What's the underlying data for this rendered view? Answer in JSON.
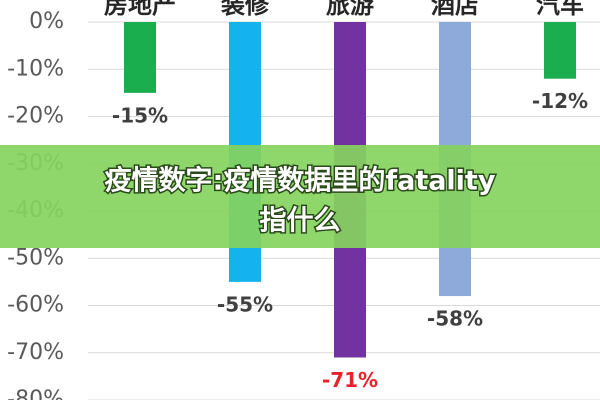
{
  "chart_data": {
    "type": "bar",
    "categories": [
      "房地产",
      "装修",
      "旅游",
      "酒店",
      "汽车"
    ],
    "values": [
      -15,
      -55,
      -71,
      -58,
      -12
    ],
    "value_labels": [
      "-15%",
      "-55%",
      "-71%",
      "-58%",
      "-12%"
    ],
    "colors": [
      "#1aae4e",
      "#14b2ef",
      "#7232a0",
      "#8eaadb",
      "#1aae4e"
    ],
    "value_label_colors": [
      "#404040",
      "#404040",
      "#e8212a",
      "#404040",
      "#404040"
    ],
    "ylim": [
      -80,
      0
    ],
    "yticks": [
      {
        "value": 0,
        "label": "0%"
      },
      {
        "value": -10,
        "label": "-10%"
      },
      {
        "value": -20,
        "label": "-20%"
      },
      {
        "value": -30,
        "label": "-30%"
      },
      {
        "value": -40,
        "label": "-40%"
      },
      {
        "value": -50,
        "label": "-50%"
      },
      {
        "value": -60,
        "label": "-60%"
      },
      {
        "value": -70,
        "label": "-70%"
      },
      {
        "value": -80,
        "label": "-80%"
      }
    ],
    "grid": true
  },
  "overlay": {
    "line1": "疫情数字:疫情数据里的fatality",
    "line2": "指什么"
  }
}
